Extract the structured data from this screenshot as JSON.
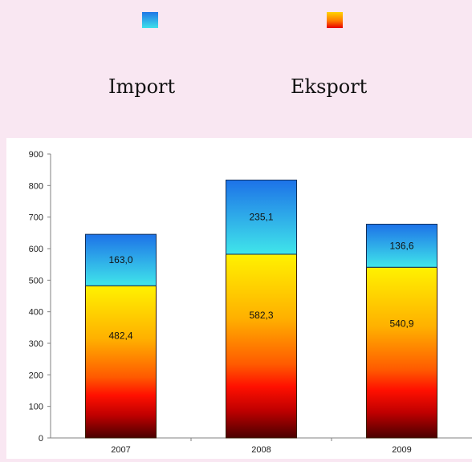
{
  "legend": {
    "items": [
      {
        "name": "Import",
        "color": "#2aa6e6"
      },
      {
        "name": "Eksport",
        "color": "#ff6a00"
      }
    ]
  },
  "chart_data": {
    "type": "bar",
    "stacked": true,
    "categories": [
      "2007",
      "2008",
      "2009"
    ],
    "series": [
      {
        "name": "Eksport",
        "values": [
          482.4,
          582.3,
          540.9
        ],
        "labels": [
          "482,4",
          "582,3",
          "540,9"
        ],
        "color": "#ff6a00"
      },
      {
        "name": "Import",
        "values": [
          163.0,
          235.1,
          136.6
        ],
        "labels": [
          "163,0",
          "235,1",
          "136,6"
        ],
        "color": "#2aa6e6"
      }
    ],
    "ylim": [
      0,
      900
    ],
    "yticks": [
      "0",
      "100",
      "200",
      "300",
      "400",
      "500",
      "600",
      "700",
      "800",
      "900"
    ],
    "grid": false,
    "legend_position": "top"
  }
}
